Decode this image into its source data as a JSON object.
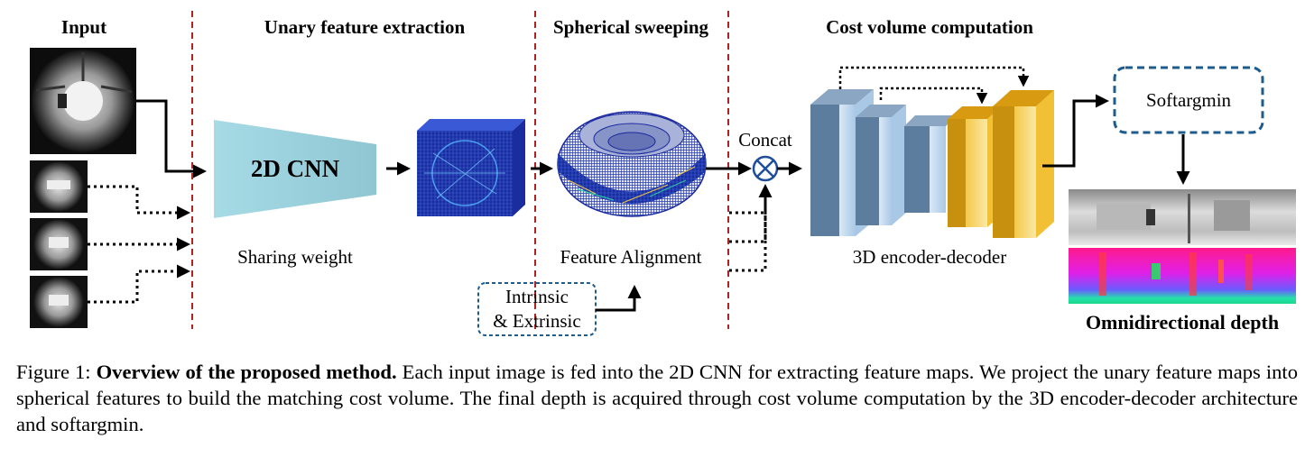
{
  "sections": {
    "input": "Input",
    "unary": "Unary feature extraction",
    "spherical": "Spherical sweeping",
    "cost": "Cost volume computation"
  },
  "cnn_label": "2D CNN",
  "sharing_weight": "Sharing weight",
  "feature_alignment": "Feature Alignment",
  "intrinsic_line1": "Intrinsic",
  "intrinsic_line2": "& Extrinsic",
  "concat": "Concat",
  "encoder_decoder": "3D encoder-decoder",
  "softargmin": "Softargmin",
  "output_label": "Omnidirectional depth",
  "caption": {
    "prefix": "Figure 1: ",
    "bold": "Overview of the proposed method.",
    "text": " Each input image is fed into the 2D CNN for extracting feature maps. We project the unary feature maps into spherical features to build the matching cost volume. The final depth is acquired through cost volume computation by the 3D encoder-decoder architecture and softargmin."
  },
  "colors": {
    "divider": "#b22222",
    "cnn_fill": "#9fd4df",
    "feature_blue": "#1a2a9c",
    "encoder_blue": "#5d7d9e",
    "decoder_gold": "#e8a714",
    "softargmin_border": "#1f5c8c"
  }
}
